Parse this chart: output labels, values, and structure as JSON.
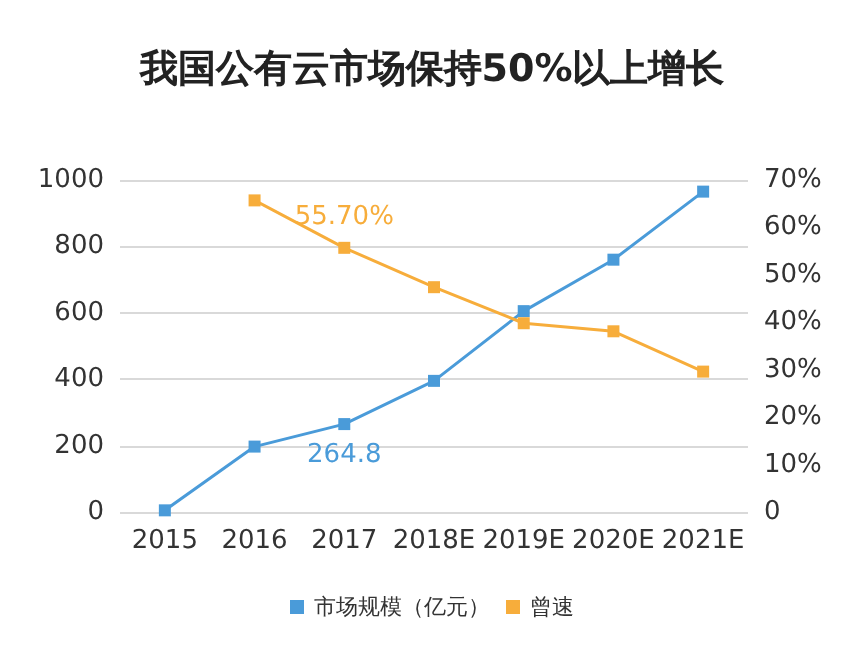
{
  "chart_data": {
    "type": "line",
    "title": "我国公有云市场保持50%以上增长",
    "categories": [
      "2015",
      "2016",
      "2017",
      "2018E",
      "2019E",
      "2020E",
      "2021E"
    ],
    "series": [
      {
        "name": "市场规模（亿元）",
        "color": "#4a9bd9",
        "values": [
          5,
          197,
          264.8,
          395,
          605,
          760,
          965
        ],
        "value_labels": [
          null,
          null,
          "264.8",
          null,
          null,
          null,
          null
        ]
      },
      {
        "name": "曾速",
        "color": "#f7ad3b",
        "axis": "y2",
        "values": [
          null,
          65.7,
          55.7,
          47.4,
          39.8,
          38.1,
          29.6
        ],
        "value_labels": [
          null,
          null,
          "55.70%",
          null,
          null,
          null,
          null
        ]
      }
    ],
    "ylim": [
      0,
      1000
    ],
    "yticks": [
      0,
      200,
      400,
      600,
      800,
      1000
    ],
    "y2lim": [
      0,
      70
    ],
    "y2ticks": [
      {
        "value": 0,
        "label": "0"
      },
      {
        "value": 10,
        "label": "10%"
      },
      {
        "value": 20,
        "label": "20%"
      },
      {
        "value": 30,
        "label": "30%"
      },
      {
        "value": 40,
        "label": "40%"
      },
      {
        "value": 50,
        "label": "50%"
      },
      {
        "value": 60,
        "label": "60%"
      },
      {
        "value": 70,
        "label": "70%"
      }
    ],
    "grid": "y",
    "legend": "bottom",
    "marker": "square",
    "line_style": "solid"
  }
}
